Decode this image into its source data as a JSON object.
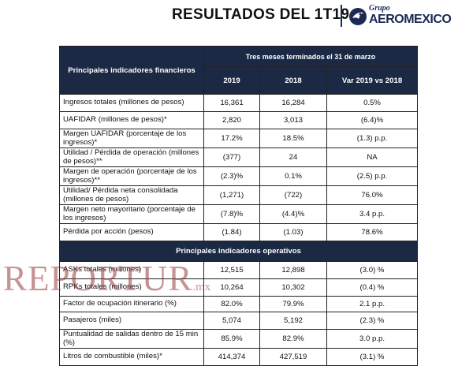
{
  "header": {
    "title": "RESULTADOS DEL 1T19",
    "logo_grupo": "Grupo",
    "logo_name": "AEROMEXICO"
  },
  "table": {
    "fin_header": "Principales indicadores financieros",
    "period_header": "Tres meses terminados el 31 de marzo",
    "col_2019": "2019",
    "col_2018": "2018",
    "col_var": "Var 2019 vs 2018",
    "fin_rows": [
      {
        "label": "Ingresos totales (millones de pesos)",
        "v2019": "16,361",
        "v2018": "16,284",
        "var": "0.5%"
      },
      {
        "label": "UAFIDAR (millones de pesos)*",
        "v2019": "2,820",
        "v2018": "3,013",
        "var": "(6.4)%"
      },
      {
        "label": "Margen UAFIDAR (porcentaje de los ingresos)*",
        "v2019": "17.2%",
        "v2018": "18.5%",
        "var": "(1.3) p.p."
      },
      {
        "label": "Utilidad / Pérdida de operación (millones de pesos)**",
        "v2019": "(377)",
        "v2018": "24",
        "var": "NA"
      },
      {
        "label": "Margen de operación (porcentaje de los ingresos)**",
        "v2019": "(2.3)%",
        "v2018": "0.1%",
        "var": "(2.5) p.p."
      },
      {
        "label": "Utilidad/ Pérdida neta consolidada (millones de pesos)",
        "v2019": "(1,271)",
        "v2018": "(722)",
        "var": "76.0%"
      },
      {
        "label": "Margen neto mayoritario (porcentaje de los ingresos)",
        "v2019": "(7.8)%",
        "v2018": "(4.4)%",
        "var": "3.4 p.p."
      },
      {
        "label": "Pérdida por acción (pesos)",
        "v2019": "(1.84)",
        "v2018": "(1.03)",
        "var": "78.6%"
      }
    ],
    "op_header": "Principales indicadores operativos",
    "op_rows": [
      {
        "label": "ASKs totales (millones)",
        "v2019": "12,515",
        "v2018": "12,898",
        "var": "(3.0) %"
      },
      {
        "label": "RPKs totales (millones)",
        "v2019": "10,264",
        "v2018": "10,302",
        "var": "(0.4) %"
      },
      {
        "label": "Factor de ocupación itinerario (%)",
        "v2019": "82.0%",
        "v2018": "79.9%",
        "var": "2.1 p.p."
      },
      {
        "label": "Pasajeros (miles)",
        "v2019": "5,074",
        "v2018": "5,192",
        "var": "(2.3) %"
      },
      {
        "label": "Puntualidad de salidas dentro de 15 min (%)",
        "v2019": "85.9%",
        "v2018": "82.9%",
        "var": "3.0 p.p."
      },
      {
        "label": "Litros de combustible (miles)*",
        "v2019": "414,374",
        "v2018": "427,519",
        "var": "(3.1) %"
      }
    ]
  },
  "watermark": {
    "text": "REPORTUR",
    "suffix": ".mx"
  },
  "colors": {
    "header_bg": "#1b2945",
    "watermark": "#983a3a"
  }
}
